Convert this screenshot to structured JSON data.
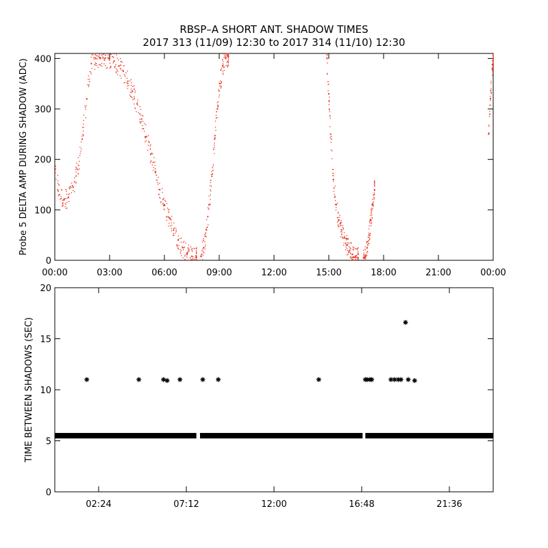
{
  "title": {
    "line1": "RBSP–A SHORT ANT. SHADOW TIMES",
    "line2": "2017 313 (11/09) 12:30 to 2017 314 (11/10) 12:30"
  },
  "colors": {
    "scatter": "#e8321e",
    "axis": "#000000",
    "background": "#ffffff"
  },
  "chart_data": [
    {
      "type": "scatter",
      "ylabel": "Probe 5 DELTA AMP DURING SHADOW (ADC)",
      "xlabel": "",
      "xlim": [
        0,
        24
      ],
      "ylim": [
        0,
        410
      ],
      "xticks": [
        "00:00",
        "03:00",
        "06:00",
        "09:00",
        "12:00",
        "15:00",
        "18:00",
        "21:00",
        "00:00"
      ],
      "xtick_values": [
        0,
        3,
        6,
        9,
        12,
        15,
        18,
        21,
        24
      ],
      "yticks": [
        "0",
        "100",
        "200",
        "300",
        "400"
      ],
      "ytick_values": [
        0,
        100,
        200,
        300,
        400
      ],
      "grid": false,
      "series": [
        {
          "marker": "dot",
          "color": "#e8321e",
          "segments": [
            {
              "x": [
                0.0,
                0.25,
                0.5,
                0.75,
                1.0,
                1.25,
                1.5,
                1.75,
                2.0,
                2.25,
                2.5,
                2.75,
                3.0,
                3.25,
                3.5,
                3.75,
                4.0,
                4.25,
                4.5,
                4.75,
                5.0,
                5.25,
                5.5,
                5.75,
                6.0,
                6.25,
                6.5,
                6.75,
                7.0,
                7.25,
                7.5,
                7.75
              ],
              "y": [
                180,
                130,
                120,
                125,
                145,
                180,
                240,
                320,
                390,
                400,
                400,
                400,
                400,
                395,
                385,
                375,
                355,
                335,
                310,
                280,
                245,
                210,
                175,
                140,
                110,
                85,
                60,
                40,
                25,
                15,
                8,
                5
              ]
            },
            {
              "x": [
                8.0,
                8.15,
                8.3,
                8.45,
                8.6,
                8.75,
                8.9,
                9.05,
                9.2,
                9.35,
                9.5
              ],
              "y": [
                8,
                25,
                60,
                110,
                170,
                240,
                300,
                350,
                385,
                400,
                405
              ]
            },
            {
              "x": [
                14.9,
                15.0,
                15.1,
                15.25,
                15.4,
                15.55,
                15.7,
                15.85,
                16.0,
                16.15,
                16.3,
                16.45,
                16.6
              ],
              "y": [
                400,
                330,
                250,
                160,
                110,
                80,
                60,
                45,
                30,
                20,
                12,
                8,
                5
              ]
            },
            {
              "x": [
                16.9,
                17.0,
                17.1,
                17.2,
                17.3,
                17.4,
                17.5
              ],
              "y": [
                5,
                10,
                25,
                50,
                80,
                110,
                140
              ]
            },
            {
              "x": [
                23.75,
                23.85,
                23.95,
                24.0
              ],
              "y": [
                250,
                320,
                380,
                400
              ]
            }
          ]
        }
      ]
    },
    {
      "type": "scatter",
      "ylabel": "TIME BETWEEN SHADOWS (SEC)",
      "xlabel": "",
      "xlim": [
        0,
        24
      ],
      "ylim": [
        0,
        20
      ],
      "xticks": [
        "02:24",
        "07:12",
        "12:00",
        "16:48",
        "21:36"
      ],
      "xtick_values": [
        2.4,
        7.2,
        12.0,
        16.8,
        21.6
      ],
      "yticks": [
        "0",
        "5",
        "10",
        "15",
        "20"
      ],
      "ytick_values": [
        0,
        5,
        10,
        15,
        20
      ],
      "grid": false,
      "series": [
        {
          "marker": "asterisk",
          "color": "#000000",
          "baseline_value": 5.5,
          "baseline_ranges": [
            [
              0.0,
              7.75
            ],
            [
              7.95,
              16.85
            ],
            [
              17.0,
              24.0
            ]
          ],
          "points": {
            "x": [
              1.75,
              4.6,
              5.95,
              6.15,
              6.85,
              8.1,
              8.95,
              14.45,
              17.0,
              17.1,
              17.25,
              17.35,
              18.4,
              18.6,
              18.8,
              18.95,
              19.2,
              19.35,
              19.7
            ],
            "y": [
              11.0,
              11.0,
              11.0,
              10.9,
              11.0,
              11.0,
              11.0,
              11.0,
              11.0,
              11.0,
              11.0,
              11.0,
              11.0,
              11.0,
              11.0,
              11.0,
              16.6,
              11.0,
              10.9
            ]
          }
        }
      ]
    }
  ]
}
